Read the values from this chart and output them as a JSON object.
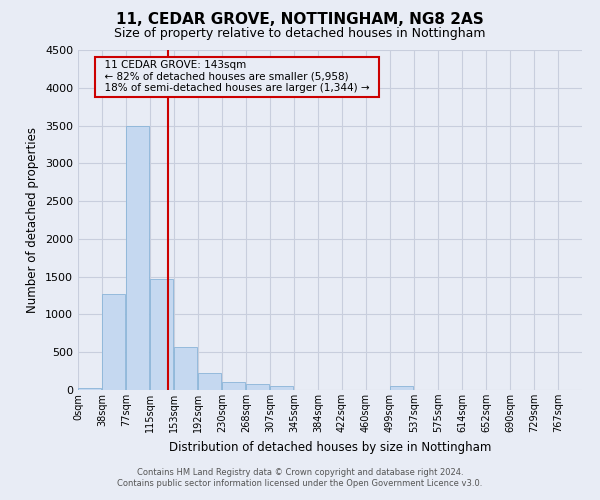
{
  "title": "11, CEDAR GROVE, NOTTINGHAM, NG8 2AS",
  "subtitle": "Size of property relative to detached houses in Nottingham",
  "xlabel": "Distribution of detached houses by size in Nottingham",
  "ylabel": "Number of detached properties",
  "footer_line1": "Contains HM Land Registry data © Crown copyright and database right 2024.",
  "footer_line2": "Contains public sector information licensed under the Open Government Licence v3.0.",
  "bin_labels": [
    "0sqm",
    "38sqm",
    "77sqm",
    "115sqm",
    "153sqm",
    "192sqm",
    "230sqm",
    "268sqm",
    "307sqm",
    "345sqm",
    "384sqm",
    "422sqm",
    "460sqm",
    "499sqm",
    "537sqm",
    "575sqm",
    "614sqm",
    "652sqm",
    "690sqm",
    "729sqm",
    "767sqm"
  ],
  "bar_values": [
    30,
    1270,
    3500,
    1470,
    570,
    230,
    110,
    75,
    50,
    0,
    0,
    0,
    0,
    50,
    0,
    0,
    0,
    0,
    0,
    0,
    0
  ],
  "bar_color": "#c5d8f0",
  "bar_edgecolor": "#8ab4d8",
  "grid_color": "#c8cedd",
  "background_color": "#e8ecf5",
  "ylim": [
    0,
    4500
  ],
  "yticks": [
    0,
    500,
    1000,
    1500,
    2000,
    2500,
    3000,
    3500,
    4000,
    4500
  ],
  "property_size": 143,
  "property_name": "11 CEDAR GROVE: 143sqm",
  "annotation_line1": "← 82% of detached houses are smaller (5,958)",
  "annotation_line2": "18% of semi-detached houses are larger (1,344) →",
  "red_line_color": "#cc0000",
  "annotation_box_edgecolor": "#cc0000",
  "annotation_text_fontsize": 7.5,
  "title_fontsize": 11,
  "subtitle_fontsize": 9,
  "bin_width": 38
}
